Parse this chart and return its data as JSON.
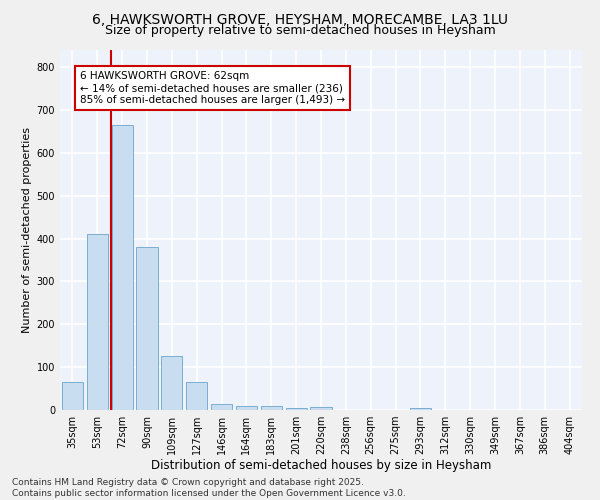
{
  "title1": "6, HAWKSWORTH GROVE, HEYSHAM, MORECAMBE, LA3 1LU",
  "title2": "Size of property relative to semi-detached houses in Heysham",
  "xlabel": "Distribution of semi-detached houses by size in Heysham",
  "ylabel": "Number of semi-detached properties",
  "categories": [
    "35sqm",
    "53sqm",
    "72sqm",
    "90sqm",
    "109sqm",
    "127sqm",
    "146sqm",
    "164sqm",
    "183sqm",
    "201sqm",
    "220sqm",
    "238sqm",
    "256sqm",
    "275sqm",
    "293sqm",
    "312sqm",
    "330sqm",
    "349sqm",
    "367sqm",
    "386sqm",
    "404sqm"
  ],
  "values": [
    65,
    410,
    665,
    380,
    125,
    65,
    15,
    10,
    10,
    5,
    8,
    0,
    0,
    0,
    5,
    0,
    0,
    0,
    0,
    0,
    0
  ],
  "bar_color": "#c9ddf0",
  "bar_edge_color": "#7aaed4",
  "property_line_x": 1.55,
  "property_line_color": "#cc0000",
  "annotation_text": "6 HAWKSWORTH GROVE: 62sqm\n← 14% of semi-detached houses are smaller (236)\n85% of semi-detached houses are larger (1,493) →",
  "annotation_box_color": "#ffffff",
  "annotation_box_edge": "#cc0000",
  "ylim": [
    0,
    840
  ],
  "yticks": [
    0,
    100,
    200,
    300,
    400,
    500,
    600,
    700,
    800
  ],
  "bg_color": "#eef2fa",
  "grid_color": "#ffffff",
  "footer": "Contains HM Land Registry data © Crown copyright and database right 2025.\nContains public sector information licensed under the Open Government Licence v3.0.",
  "title1_fontsize": 10,
  "title2_fontsize": 9,
  "xlabel_fontsize": 8.5,
  "ylabel_fontsize": 8,
  "tick_fontsize": 7,
  "annotation_fontsize": 7.5,
  "footer_fontsize": 6.5
}
